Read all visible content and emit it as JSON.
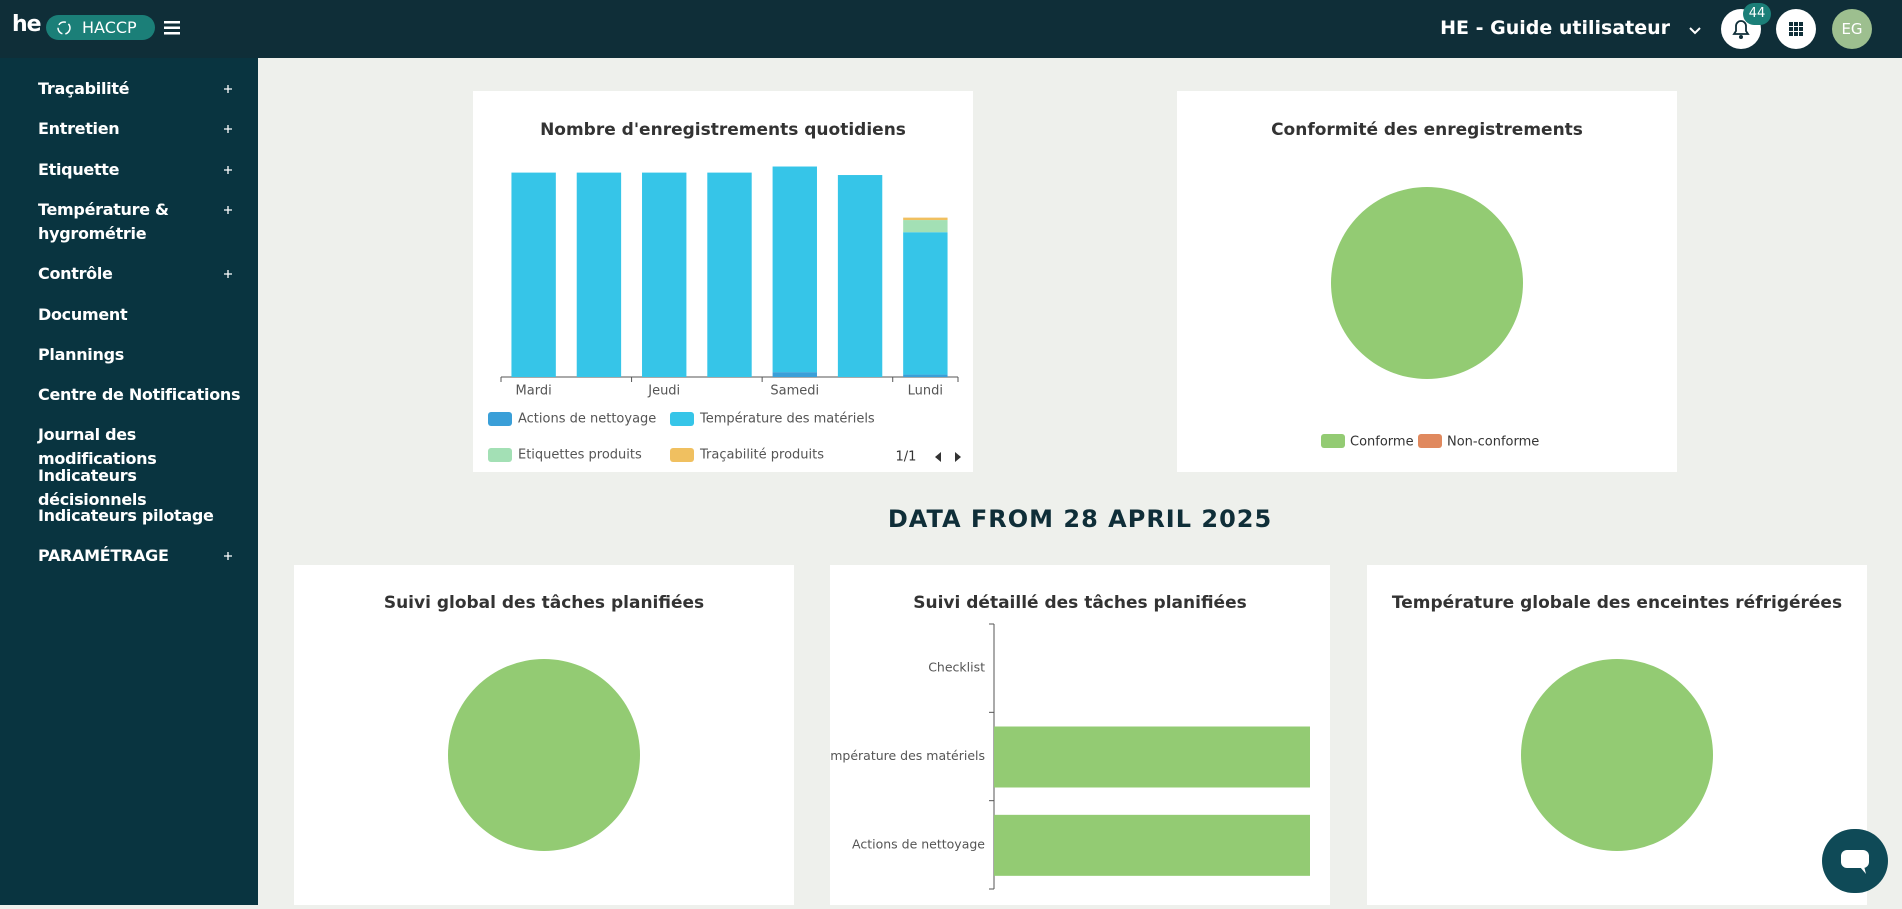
{
  "header": {
    "logo": "he",
    "app": "HACCP",
    "account": "HE - Guide utilisateur",
    "notifications": "44",
    "avatar": "EG"
  },
  "sidebar": [
    {
      "label": "Traçabilité",
      "expandable": true
    },
    {
      "label": "Entretien",
      "expandable": true
    },
    {
      "label": "Etiquette",
      "expandable": true
    },
    {
      "label": "Température & hygrométrie",
      "expandable": true
    },
    {
      "label": "Contrôle",
      "expandable": true
    },
    {
      "label": "Document",
      "expandable": false
    },
    {
      "label": "Plannings",
      "expandable": false
    },
    {
      "label": "Centre de Notifications",
      "expandable": false
    },
    {
      "label": "Journal des modifications",
      "expandable": false
    },
    {
      "label": "Indicateurs décisionnels",
      "expandable": false
    },
    {
      "label": "Indicateurs pilotage",
      "expandable": false
    },
    {
      "label": "PARAMÉTRAGE",
      "expandable": true
    }
  ],
  "section_title": "DATA FROM 28 APRIL 2025",
  "chart_data": [
    {
      "type": "stacked-bar",
      "title": "Nombre d'enregistrements quotidiens",
      "categories": [
        "Mardi",
        null,
        "Jeudi",
        null,
        "Samedi",
        null,
        "Lundi"
      ],
      "series": [
        {
          "name": "Actions de nettoyage",
          "color": "#3a9fd8",
          "values": [
            0,
            0,
            0,
            0,
            4,
            0,
            2
          ]
        },
        {
          "name": "Température des matériels",
          "color": "#36c5e8",
          "values": [
            168,
            168,
            168,
            168,
            169,
            166,
            117
          ]
        },
        {
          "name": "Etiquettes produits",
          "color": "#a3e0b5",
          "values": [
            0,
            0,
            0,
            0,
            0,
            0,
            10
          ]
        },
        {
          "name": "Traçabilité produits",
          "color": "#f0c060",
          "values": [
            0,
            0,
            0,
            0,
            0,
            0,
            2
          ]
        }
      ],
      "ylim": [
        0,
        180
      ],
      "legend_page": "1/1"
    },
    {
      "type": "pie",
      "title": "Conformité des enregistrements",
      "categories": [
        "Conforme",
        "Non-conforme"
      ],
      "values": [
        100,
        0
      ],
      "colors": [
        "#93cb73",
        "#e0895e"
      ]
    },
    {
      "type": "pie",
      "title": "Suivi global des tâches planifiées",
      "values": [
        100
      ],
      "colors": [
        "#93cb73"
      ]
    },
    {
      "type": "hbar",
      "title": "Suivi détaillé des tâches planifiées",
      "categories": [
        "Checklist",
        "Température des matériels",
        "Actions de nettoyage"
      ],
      "values": [
        0,
        100,
        100
      ],
      "color": "#93cb73",
      "xlim": [
        0,
        100
      ]
    },
    {
      "type": "pie",
      "title": "Température globale des enceintes réfrigérées",
      "values": [
        100
      ],
      "colors": [
        "#93cb73"
      ]
    }
  ]
}
